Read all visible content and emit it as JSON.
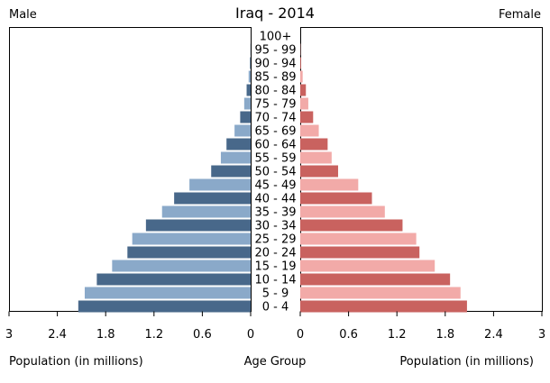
{
  "chart_data": {
    "type": "bar",
    "orientation": "horizontal",
    "title": "Iraq - 2014",
    "left_label": "Male",
    "right_label": "Female",
    "xlabel_left": "Population (in millions)",
    "xlabel_center": "Age Group",
    "xlabel_right": "Population (in millions)",
    "xlim": [
      0,
      3
    ],
    "x_ticks": [
      3,
      2.4,
      1.8,
      1.2,
      0.6,
      0
    ],
    "x_tick_labels": [
      "3",
      "2.4",
      "1.8",
      "1.2",
      "0.6",
      "0"
    ],
    "x_ticks_right": [
      0,
      0.6,
      1.2,
      1.8,
      2.4,
      3
    ],
    "x_tick_labels_right": [
      "0",
      "0.6",
      "1.2",
      "1.8",
      "2.4",
      "3"
    ],
    "categories": [
      "100+",
      "95 - 99",
      "90 - 94",
      "85 - 89",
      "80 - 84",
      "75 - 79",
      "70 - 74",
      "65 - 69",
      "60 - 64",
      "55 - 59",
      "50 - 54",
      "45 - 49",
      "40 - 44",
      "35 - 39",
      "30 - 34",
      "25 - 29",
      "20 - 24",
      "15 - 19",
      "10 - 14",
      "5 - 9",
      "0 - 4"
    ],
    "series": [
      {
        "name": "Male",
        "colors": [
          "#48688a",
          "#8aa9c9"
        ],
        "values": [
          0.0,
          0.003,
          0.008,
          0.025,
          0.05,
          0.08,
          0.13,
          0.2,
          0.3,
          0.37,
          0.49,
          0.76,
          0.95,
          1.1,
          1.3,
          1.47,
          1.53,
          1.72,
          1.91,
          2.06,
          2.14
        ]
      },
      {
        "name": "Female",
        "colors": [
          "#c9625f",
          "#f2aaa8"
        ],
        "values": [
          0.0,
          0.004,
          0.01,
          0.03,
          0.07,
          0.1,
          0.16,
          0.23,
          0.34,
          0.39,
          0.47,
          0.72,
          0.89,
          1.05,
          1.27,
          1.44,
          1.48,
          1.67,
          1.86,
          1.99,
          2.07
        ]
      }
    ]
  }
}
